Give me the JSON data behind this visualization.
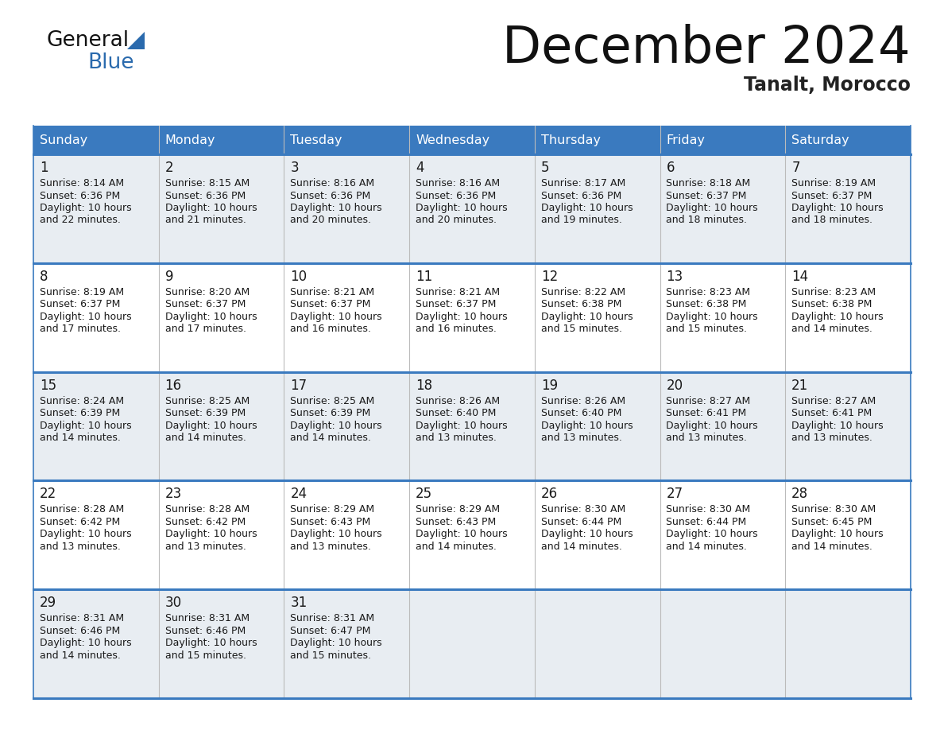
{
  "title": "December 2024",
  "subtitle": "Tanalt, Morocco",
  "header_color": "#3a7abf",
  "header_text_color": "#ffffff",
  "days_of_week": [
    "Sunday",
    "Monday",
    "Tuesday",
    "Wednesday",
    "Thursday",
    "Friday",
    "Saturday"
  ],
  "cell_bg_light": "#e8edf2",
  "cell_bg_white": "#ffffff",
  "border_color": "#3a7abf",
  "row_border_color": "#4a7fb5",
  "text_color": "#1a1a1a",
  "title_color": "#111111",
  "subtitle_color": "#222222",
  "logo_black": "#111111",
  "logo_blue": "#2a6aad",
  "calendar": [
    [
      {
        "day": "1",
        "sunrise": "8:14 AM",
        "sunset": "6:36 PM",
        "daylight_h": "10 hours",
        "daylight_m": "and 22 minutes."
      },
      {
        "day": "2",
        "sunrise": "8:15 AM",
        "sunset": "6:36 PM",
        "daylight_h": "10 hours",
        "daylight_m": "and 21 minutes."
      },
      {
        "day": "3",
        "sunrise": "8:16 AM",
        "sunset": "6:36 PM",
        "daylight_h": "10 hours",
        "daylight_m": "and 20 minutes."
      },
      {
        "day": "4",
        "sunrise": "8:16 AM",
        "sunset": "6:36 PM",
        "daylight_h": "10 hours",
        "daylight_m": "and 20 minutes."
      },
      {
        "day": "5",
        "sunrise": "8:17 AM",
        "sunset": "6:36 PM",
        "daylight_h": "10 hours",
        "daylight_m": "and 19 minutes."
      },
      {
        "day": "6",
        "sunrise": "8:18 AM",
        "sunset": "6:37 PM",
        "daylight_h": "10 hours",
        "daylight_m": "and 18 minutes."
      },
      {
        "day": "7",
        "sunrise": "8:19 AM",
        "sunset": "6:37 PM",
        "daylight_h": "10 hours",
        "daylight_m": "and 18 minutes."
      }
    ],
    [
      {
        "day": "8",
        "sunrise": "8:19 AM",
        "sunset": "6:37 PM",
        "daylight_h": "10 hours",
        "daylight_m": "and 17 minutes."
      },
      {
        "day": "9",
        "sunrise": "8:20 AM",
        "sunset": "6:37 PM",
        "daylight_h": "10 hours",
        "daylight_m": "and 17 minutes."
      },
      {
        "day": "10",
        "sunrise": "8:21 AM",
        "sunset": "6:37 PM",
        "daylight_h": "10 hours",
        "daylight_m": "and 16 minutes."
      },
      {
        "day": "11",
        "sunrise": "8:21 AM",
        "sunset": "6:37 PM",
        "daylight_h": "10 hours",
        "daylight_m": "and 16 minutes."
      },
      {
        "day": "12",
        "sunrise": "8:22 AM",
        "sunset": "6:38 PM",
        "daylight_h": "10 hours",
        "daylight_m": "and 15 minutes."
      },
      {
        "day": "13",
        "sunrise": "8:23 AM",
        "sunset": "6:38 PM",
        "daylight_h": "10 hours",
        "daylight_m": "and 15 minutes."
      },
      {
        "day": "14",
        "sunrise": "8:23 AM",
        "sunset": "6:38 PM",
        "daylight_h": "10 hours",
        "daylight_m": "and 14 minutes."
      }
    ],
    [
      {
        "day": "15",
        "sunrise": "8:24 AM",
        "sunset": "6:39 PM",
        "daylight_h": "10 hours",
        "daylight_m": "and 14 minutes."
      },
      {
        "day": "16",
        "sunrise": "8:25 AM",
        "sunset": "6:39 PM",
        "daylight_h": "10 hours",
        "daylight_m": "and 14 minutes."
      },
      {
        "day": "17",
        "sunrise": "8:25 AM",
        "sunset": "6:39 PM",
        "daylight_h": "10 hours",
        "daylight_m": "and 14 minutes."
      },
      {
        "day": "18",
        "sunrise": "8:26 AM",
        "sunset": "6:40 PM",
        "daylight_h": "10 hours",
        "daylight_m": "and 13 minutes."
      },
      {
        "day": "19",
        "sunrise": "8:26 AM",
        "sunset": "6:40 PM",
        "daylight_h": "10 hours",
        "daylight_m": "and 13 minutes."
      },
      {
        "day": "20",
        "sunrise": "8:27 AM",
        "sunset": "6:41 PM",
        "daylight_h": "10 hours",
        "daylight_m": "and 13 minutes."
      },
      {
        "day": "21",
        "sunrise": "8:27 AM",
        "sunset": "6:41 PM",
        "daylight_h": "10 hours",
        "daylight_m": "and 13 minutes."
      }
    ],
    [
      {
        "day": "22",
        "sunrise": "8:28 AM",
        "sunset": "6:42 PM",
        "daylight_h": "10 hours",
        "daylight_m": "and 13 minutes."
      },
      {
        "day": "23",
        "sunrise": "8:28 AM",
        "sunset": "6:42 PM",
        "daylight_h": "10 hours",
        "daylight_m": "and 13 minutes."
      },
      {
        "day": "24",
        "sunrise": "8:29 AM",
        "sunset": "6:43 PM",
        "daylight_h": "10 hours",
        "daylight_m": "and 13 minutes."
      },
      {
        "day": "25",
        "sunrise": "8:29 AM",
        "sunset": "6:43 PM",
        "daylight_h": "10 hours",
        "daylight_m": "and 14 minutes."
      },
      {
        "day": "26",
        "sunrise": "8:30 AM",
        "sunset": "6:44 PM",
        "daylight_h": "10 hours",
        "daylight_m": "and 14 minutes."
      },
      {
        "day": "27",
        "sunrise": "8:30 AM",
        "sunset": "6:44 PM",
        "daylight_h": "10 hours",
        "daylight_m": "and 14 minutes."
      },
      {
        "day": "28",
        "sunrise": "8:30 AM",
        "sunset": "6:45 PM",
        "daylight_h": "10 hours",
        "daylight_m": "and 14 minutes."
      }
    ],
    [
      {
        "day": "29",
        "sunrise": "8:31 AM",
        "sunset": "6:46 PM",
        "daylight_h": "10 hours",
        "daylight_m": "and 14 minutes."
      },
      {
        "day": "30",
        "sunrise": "8:31 AM",
        "sunset": "6:46 PM",
        "daylight_h": "10 hours",
        "daylight_m": "and 15 minutes."
      },
      {
        "day": "31",
        "sunrise": "8:31 AM",
        "sunset": "6:47 PM",
        "daylight_h": "10 hours",
        "daylight_m": "and 15 minutes."
      },
      null,
      null,
      null,
      null
    ]
  ]
}
